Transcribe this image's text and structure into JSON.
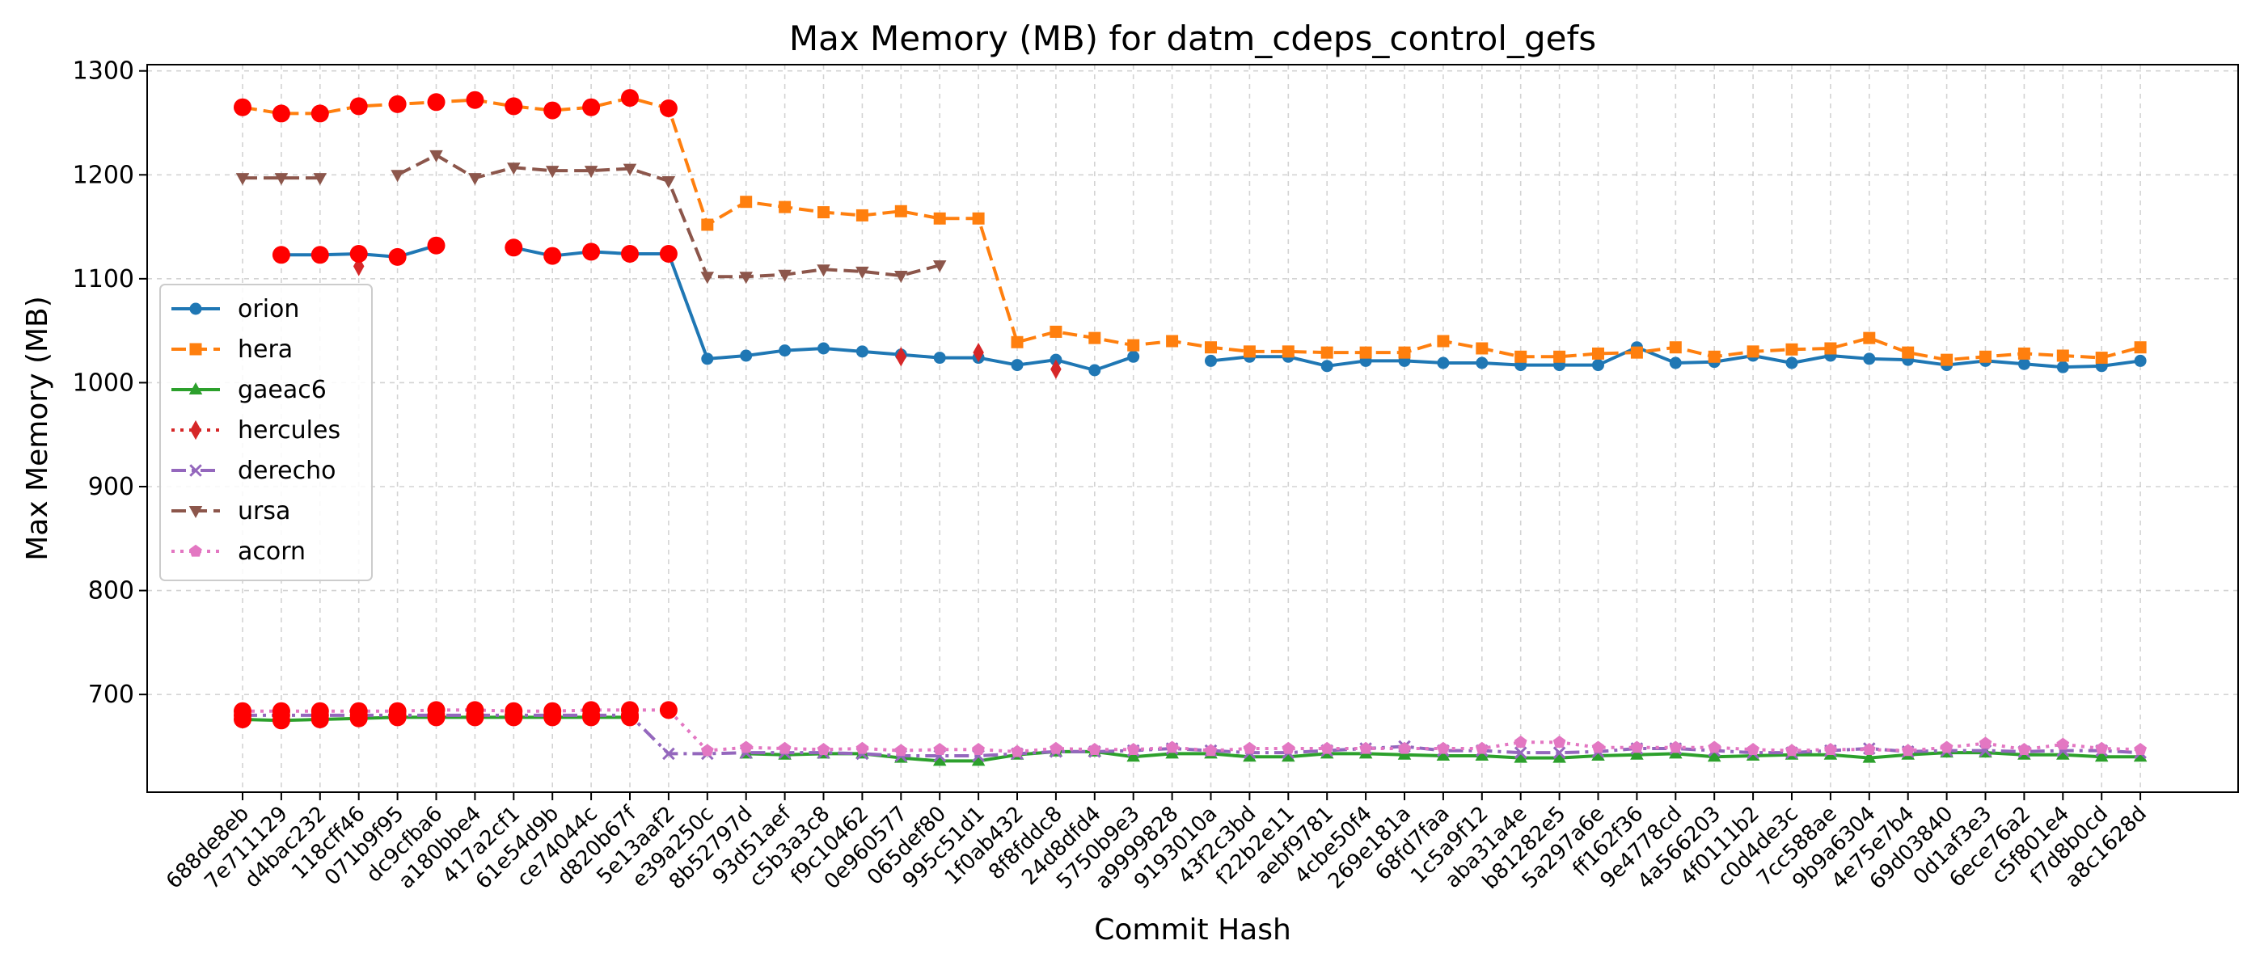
{
  "chart_data": {
    "type": "line",
    "title": "Max Memory (MB) for datm_cdeps_control_gefs",
    "xlabel": "Commit Hash",
    "ylabel": "Max Memory (MB)",
    "ylim": [
      606,
      1306
    ],
    "yticks": [
      700,
      800,
      900,
      1000,
      1100,
      1200,
      1300
    ],
    "grid": true,
    "legend_position": "center-left",
    "highlight_color": "#ff0000",
    "categories": [
      "688de8eb",
      "7e711129",
      "d4bac232",
      "118cff46",
      "071b9f95",
      "dc9cfba6",
      "a180bbe4",
      "417a2cf1",
      "61e54d9b",
      "ce74044c",
      "d820b67f",
      "5e13aaf2",
      "e39a250c",
      "8b52797d",
      "93d51aef",
      "c5b3a3c8",
      "f9c10462",
      "0e960577",
      "065def80",
      "995c51d1",
      "1f0ab432",
      "8f8fddc8",
      "24d8dfd4",
      "5750b9e3",
      "a9999828",
      "9193010a",
      "43f2c3bd",
      "f22b2e11",
      "aebf9781",
      "4cbe50f4",
      "269e181a",
      "68fd7faa",
      "1c5a9f12",
      "aba31a4e",
      "b81282e5",
      "5a297a6e",
      "ff162f36",
      "9e4778cd",
      "4a566203",
      "4f0111b2",
      "c0d4de3c",
      "7cc588ae",
      "9b9a6304",
      "4e75e7b4",
      "69d03840",
      "0d1af3e3",
      "6ece76a2",
      "c5f801e4",
      "f7d8b0cd",
      "a8c1628d"
    ],
    "series": [
      {
        "name": "orion",
        "color": "#1f77b4",
        "marker": "circle",
        "dash": "solid",
        "values": [
          null,
          1123,
          1123,
          1124,
          1121,
          1132,
          null,
          1130,
          1122,
          1126,
          1124,
          1124,
          1023,
          1026,
          1031,
          1033,
          1030,
          1027,
          1024,
          1024,
          1017,
          1022,
          1012,
          1025,
          null,
          1021,
          1025,
          1025,
          1016,
          1021,
          1021,
          1019,
          1019,
          1017,
          1017,
          1017,
          1034,
          1019,
          1020,
          1026,
          1019,
          1026,
          1023,
          1022,
          1017,
          1021,
          1018,
          1015,
          1016,
          1021
        ],
        "highlighted": [
          1,
          2,
          3,
          4,
          5,
          7,
          8,
          9,
          10,
          11
        ]
      },
      {
        "name": "hera",
        "color": "#ff7f0e",
        "marker": "square",
        "dash": "dashed",
        "values": [
          1265,
          1259,
          1259,
          1266,
          1268,
          1270,
          1272,
          1266,
          1262,
          1265,
          1274,
          1264,
          1152,
          1174,
          1169,
          1164,
          1161,
          1165,
          1158,
          1158,
          1039,
          1049,
          1043,
          1036,
          1040,
          1034,
          1030,
          1030,
          1029,
          1029,
          1029,
          1040,
          1033,
          1025,
          1025,
          1028,
          1029,
          1034,
          1025,
          1030,
          1032,
          1033,
          1043,
          1029,
          1022,
          1025,
          1028,
          1026,
          1024,
          1034
        ],
        "highlighted": [
          0,
          1,
          2,
          3,
          4,
          5,
          6,
          7,
          8,
          9,
          10,
          11
        ]
      },
      {
        "name": "gaeac6",
        "color": "#2ca02c",
        "marker": "triangle-up",
        "dash": "solid",
        "values": [
          676,
          675,
          676,
          677,
          678,
          678,
          678,
          678,
          678,
          678,
          678,
          null,
          null,
          643,
          642,
          643,
          643,
          639,
          636,
          636,
          642,
          645,
          645,
          640,
          643,
          643,
          640,
          640,
          643,
          643,
          642,
          641,
          641,
          639,
          639,
          641,
          642,
          643,
          640,
          641,
          642,
          642,
          639,
          642,
          644,
          644,
          642,
          642,
          640,
          640
        ],
        "highlighted": [
          0,
          1,
          2,
          3,
          4,
          5,
          6,
          7,
          8,
          9,
          10
        ]
      },
      {
        "name": "hercules",
        "color": "#d62728",
        "marker": "diamond",
        "dash": "dotted",
        "values": [
          null,
          null,
          null,
          1112,
          null,
          null,
          null,
          null,
          null,
          null,
          null,
          null,
          null,
          null,
          null,
          null,
          null,
          1025,
          null,
          1029,
          null,
          1013,
          null,
          null,
          null,
          null,
          null,
          null,
          null,
          null,
          null,
          null,
          null,
          null,
          null,
          null,
          null,
          null,
          null,
          null,
          null,
          null,
          null,
          null,
          null,
          null,
          null,
          null,
          null,
          null
        ],
        "highlighted": []
      },
      {
        "name": "derecho",
        "color": "#9467bd",
        "marker": "x",
        "dash": "dashdot",
        "values": [
          680,
          680,
          680,
          680,
          680,
          680,
          680,
          680,
          680,
          680,
          680,
          643,
          643,
          644,
          644,
          644,
          643,
          641,
          641,
          641,
          643,
          645,
          645,
          646,
          648,
          646,
          644,
          644,
          646,
          648,
          650,
          646,
          646,
          644,
          644,
          645,
          648,
          648,
          646,
          644,
          644,
          646,
          648,
          645,
          646,
          646,
          645,
          646,
          646,
          644
        ],
        "highlighted": [
          0,
          1,
          2,
          3,
          4,
          5,
          6,
          7,
          8,
          9,
          10
        ]
      },
      {
        "name": "ursa",
        "color": "#8c564b",
        "marker": "triangle-down",
        "dash": "dashed",
        "values": [
          1197,
          1197,
          1197,
          null,
          1200,
          1219,
          1197,
          1207,
          1204,
          1204,
          1206,
          1194,
          1102,
          1102,
          1104,
          1109,
          1107,
          1103,
          1113,
          null,
          null,
          null,
          null,
          null,
          null,
          null,
          null,
          null,
          null,
          null,
          null,
          null,
          null,
          null,
          null,
          null,
          null,
          null,
          null,
          null,
          null,
          null,
          null,
          null,
          null,
          null,
          null,
          null,
          null,
          null
        ],
        "highlighted": []
      },
      {
        "name": "acorn",
        "color": "#e377c2",
        "marker": "pentagon",
        "dash": "dotted",
        "values": [
          684,
          684,
          684,
          684,
          684,
          685,
          685,
          684,
          684,
          685,
          685,
          685,
          646,
          649,
          648,
          647,
          648,
          646,
          647,
          647,
          645,
          648,
          647,
          647,
          649,
          646,
          648,
          648,
          648,
          648,
          648,
          648,
          648,
          654,
          654,
          649,
          649,
          649,
          649,
          647,
          646,
          647,
          647,
          646,
          649,
          653,
          647,
          652,
          648,
          647
        ],
        "highlighted": [
          0,
          1,
          2,
          3,
          4,
          5,
          6,
          7,
          8,
          9,
          10,
          11
        ]
      }
    ]
  }
}
